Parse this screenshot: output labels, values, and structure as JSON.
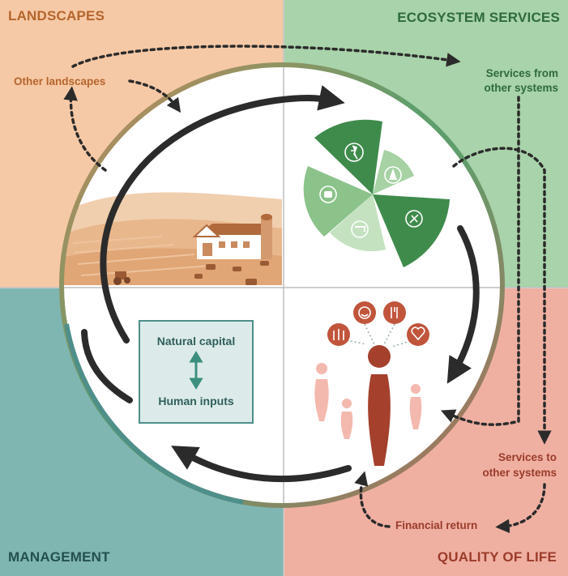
{
  "quadrants": {
    "landscapes": "LANDSCAPES",
    "ecosystem_services": "ECOSYSTEM SERVICES",
    "management": "MANAGEMENT",
    "quality_of_life": "QUALITY OF LIFE"
  },
  "labels": {
    "other_landscapes": "Other landscapes",
    "services_from_line1": "Services from",
    "services_from_line2": "other systems",
    "services_to_line1": "Services to",
    "services_to_line2": "other systems",
    "financial_return": "Financial return"
  },
  "management_box": {
    "natural_capital": "Natural capital",
    "human_inputs": "Human inputs"
  },
  "colors": {
    "landscapes_bg": "#f6c9a6",
    "ecosystem_bg": "#a9d3aa",
    "management_bg": "#7fb6b2",
    "quality_bg": "#efb0a2",
    "landscapes_text": "#b5652b",
    "ecosystem_text": "#2e6b3a",
    "management_text": "#24504d",
    "quality_text": "#9b3b2a"
  },
  "icons": [
    "hiking-icon",
    "tree-icon",
    "bee-icon",
    "faucet-icon",
    "crop-icon",
    "smiley-icon",
    "cutlery-icon",
    "family-icon",
    "heart-icon"
  ]
}
